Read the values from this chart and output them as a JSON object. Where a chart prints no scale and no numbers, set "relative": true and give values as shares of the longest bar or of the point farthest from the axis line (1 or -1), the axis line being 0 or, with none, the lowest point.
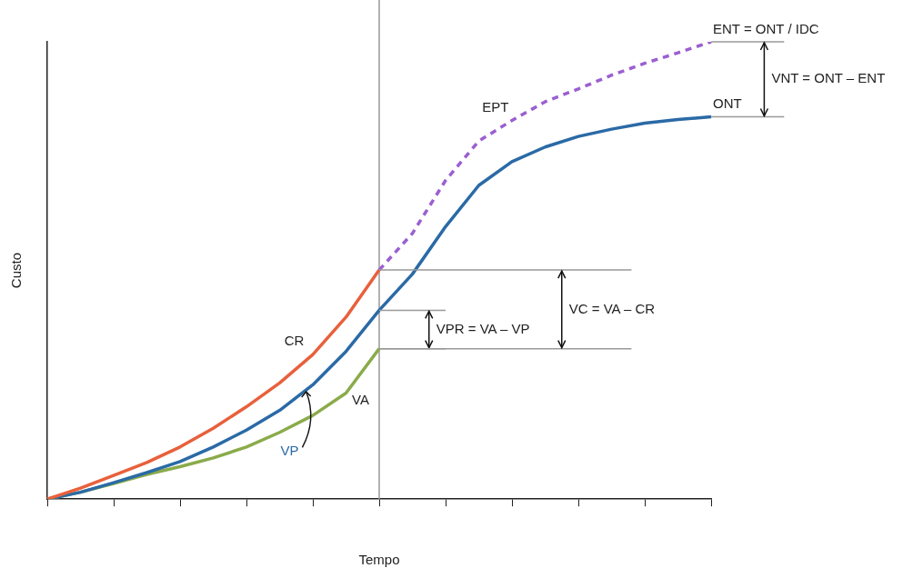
{
  "chart_data": {
    "type": "line",
    "xlabel": "Tempo",
    "ylabel": "Custo",
    "relative": true,
    "categories": [
      null,
      null,
      null,
      null,
      null,
      null,
      null,
      null,
      null,
      null,
      null,
      null,
      null,
      null,
      null,
      null,
      null,
      null,
      null,
      null,
      null
    ],
    "grid": false,
    "legend": false,
    "marker": "none",
    "series": [
      {
        "name": "CR",
        "color": "#e8603c",
        "values": [
          0,
          0.024,
          0.052,
          0.08,
          0.114,
          0.155,
          0.202,
          0.254,
          0.316,
          0.398,
          0.501,
          null,
          null,
          null,
          null,
          null,
          null,
          null,
          null,
          null,
          null
        ]
      },
      {
        "name": "VP",
        "color": "#2a6aa6",
        "values": [
          0,
          0.015,
          0.036,
          0.058,
          0.082,
          0.114,
          0.151,
          0.194,
          0.25,
          0.323,
          0.413,
          0.492,
          0.596,
          0.686,
          0.738,
          0.77,
          0.793,
          0.809,
          0.822,
          0.83,
          0.836
        ]
      },
      {
        "name": "VA",
        "color": "#8aab4a",
        "values": [
          0,
          0.015,
          0.034,
          0.054,
          0.071,
          0.09,
          0.114,
          0.146,
          0.183,
          0.232,
          0.329,
          null,
          null,
          null,
          null,
          null,
          null,
          null,
          null,
          null,
          null
        ]
      },
      {
        "name": "EPT",
        "color": "#9b5fd0",
        "line_style": "dashed",
        "values": [
          null,
          null,
          null,
          null,
          null,
          null,
          null,
          null,
          null,
          null,
          0.501,
          0.581,
          0.697,
          0.783,
          0.828,
          0.869,
          0.897,
          0.927,
          0.953,
          0.976,
          1
        ]
      }
    ],
    "annotations": [
      "ENT = ONT / IDC",
      "ONT",
      "VNT = ONT – ENT",
      "VPR = VA – VP",
      "VC = VA – CR"
    ]
  }
}
